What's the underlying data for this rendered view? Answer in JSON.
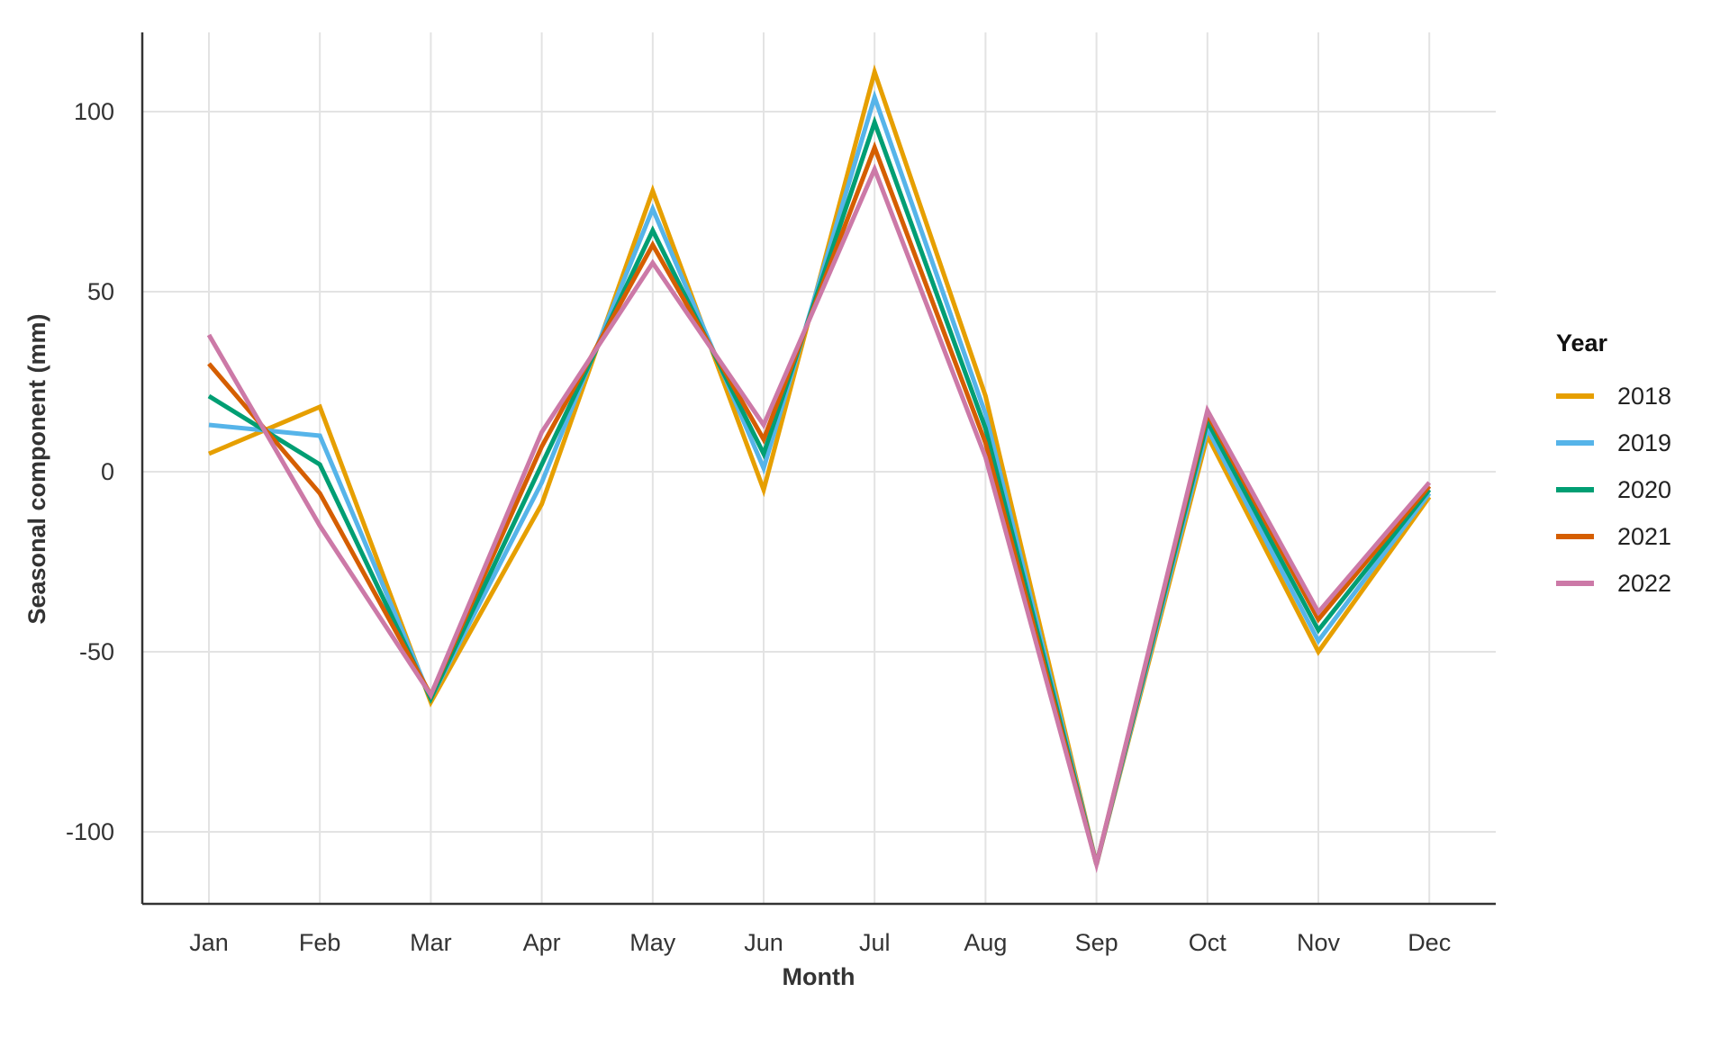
{
  "chart_data": {
    "type": "line",
    "title": "",
    "xlabel": "Month",
    "ylabel": "Seasonal component (mm)",
    "categories": [
      "Jan",
      "Feb",
      "Mar",
      "Apr",
      "May",
      "Jun",
      "Jul",
      "Aug",
      "Sep",
      "Oct",
      "Nov",
      "Dec"
    ],
    "ylim": [
      -120,
      122
    ],
    "yticks": [
      100,
      50,
      0,
      -50,
      -100
    ],
    "ytick_labels": [
      "100",
      "50",
      "0",
      "-50",
      "-100"
    ],
    "grid": true,
    "legend": {
      "title": "Year",
      "position": "right"
    },
    "series": [
      {
        "name": "2018",
        "color": "#E69F00",
        "values": [
          5,
          18,
          -64,
          -9,
          78,
          -5,
          111,
          21,
          -109,
          10,
          -50,
          -7
        ]
      },
      {
        "name": "2019",
        "color": "#56B4E9",
        "values": [
          13,
          10,
          -63,
          -3,
          73,
          1,
          104,
          16,
          -109,
          12,
          -47,
          -6
        ]
      },
      {
        "name": "2020",
        "color": "#009E73",
        "values": [
          21,
          2,
          -63,
          2,
          67,
          5,
          97,
          12,
          -109,
          14,
          -44,
          -5
        ]
      },
      {
        "name": "2021",
        "color": "#D55E00",
        "values": [
          30,
          -6,
          -62,
          7,
          63,
          9,
          90,
          8,
          -109,
          16,
          -41,
          -4
        ]
      },
      {
        "name": "2022",
        "color": "#CC79A7",
        "values": [
          38,
          -15,
          -62,
          11,
          58,
          13,
          84,
          4,
          -109,
          17,
          -39,
          -3
        ]
      }
    ]
  }
}
